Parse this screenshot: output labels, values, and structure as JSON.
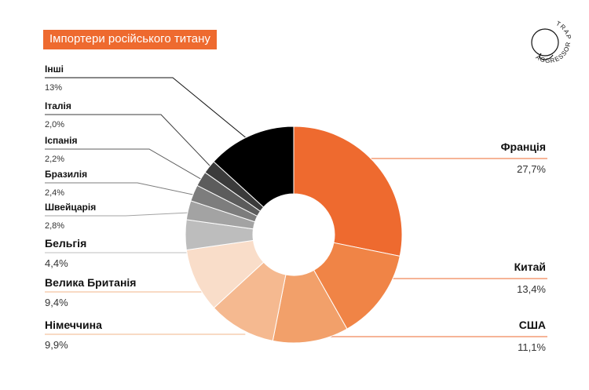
{
  "title": "Імпортери російського титану",
  "logo": {
    "top": "TRAP",
    "bottom": "AGGRESSOR"
  },
  "chart_data": {
    "type": "pie",
    "variant": "donut",
    "title": "Імпортери російського титану",
    "slices": [
      {
        "label": "Франція",
        "value": 27.7,
        "display": "27,7%",
        "color": "#ee6a2f"
      },
      {
        "label": "Китай",
        "value": 13.4,
        "display": "13,4%",
        "color": "#f08446"
      },
      {
        "label": "США",
        "value": 11.1,
        "display": "11,1%",
        "color": "#f2a06a"
      },
      {
        "label": "Німеччина",
        "value": 9.9,
        "display": "9,9%",
        "color": "#f5b990"
      },
      {
        "label": "Велика Британія",
        "value": 9.4,
        "display": "9,4%",
        "color": "#f9ddc9"
      },
      {
        "label": "Бельгія",
        "value": 4.4,
        "display": "4,4%",
        "color": "#bdbdbd"
      },
      {
        "label": "Швейцарія",
        "value": 2.8,
        "display": "2,8%",
        "color": "#a3a3a3"
      },
      {
        "label": "Бразилія",
        "value": 2.4,
        "display": "2,4%",
        "color": "#7d7d7d"
      },
      {
        "label": "Іспанія",
        "value": 2.2,
        "display": "2,2%",
        "color": "#5c5c5c"
      },
      {
        "label": "Італія",
        "value": 2.0,
        "display": "2,0%",
        "color": "#3b3b3b"
      },
      {
        "label": "Інші",
        "value": 13,
        "display": "13%",
        "color": "#000000"
      }
    ]
  }
}
